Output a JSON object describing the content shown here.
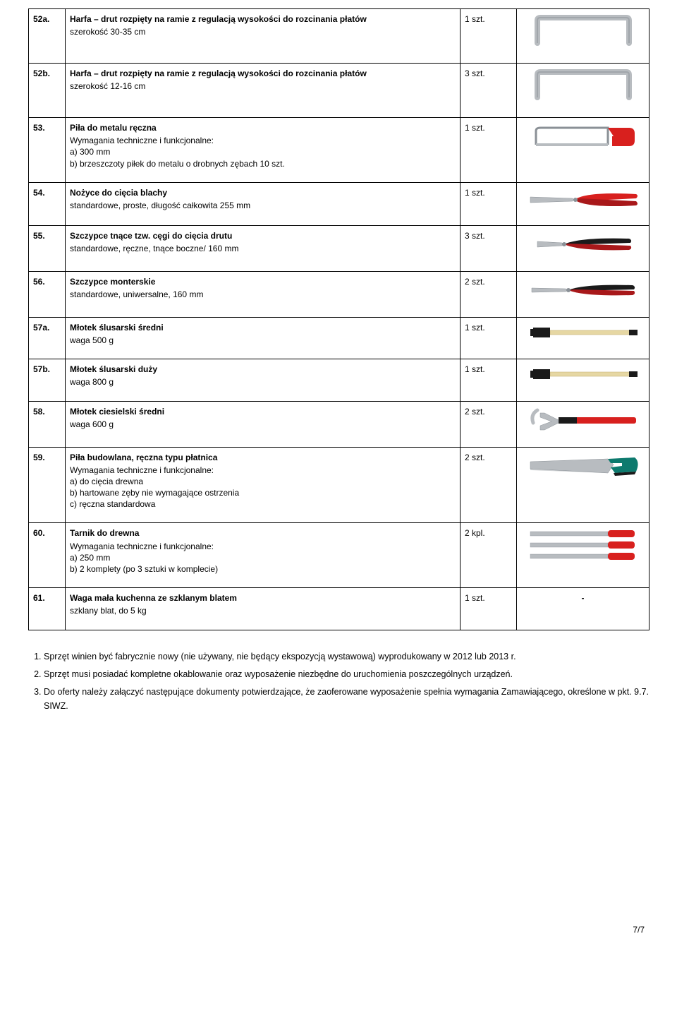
{
  "rows": [
    {
      "num": "52a.",
      "title": "Harfa – drut rozpięty na ramie z regulacją wysokości do rozcinania płatów",
      "lines": [
        "szerokość 30-35 cm"
      ],
      "qty": "1 szt.",
      "icon": "harp-frame-large"
    },
    {
      "num": "52b.",
      "title": "Harfa – drut rozpięty na ramie z regulacją wysokości do rozcinania płatów",
      "lines": [
        "szerokość 12-16 cm"
      ],
      "qty": "3 szt.",
      "icon": "harp-frame-small"
    },
    {
      "num": "53.",
      "title": "Piła do metalu ręczna",
      "lines": [
        "Wymagania techniczne i funkcjonalne:",
        "a)  300 mm",
        "b)  brzeszczoty piłek do metalu o drobnych zębach 10 szt."
      ],
      "qty": "1 szt.",
      "icon": "hacksaw"
    },
    {
      "num": "54.",
      "title": "Nożyce do cięcia blachy",
      "lines": [
        "standardowe, proste, długość całkowita 255 mm"
      ],
      "qty": "1 szt.",
      "icon": "tin-snips"
    },
    {
      "num": "55.",
      "title": "Szczypce tnące tzw. cęgi do cięcia drutu",
      "lines": [
        "standardowe, ręczne, tnące boczne/ 160 mm"
      ],
      "qty": "3 szt.",
      "icon": "side-cutters"
    },
    {
      "num": "56.",
      "title": "Szczypce monterskie",
      "lines": [
        "standardowe, uniwersalne, 160 mm"
      ],
      "qty": "2 szt.",
      "icon": "combination-pliers"
    },
    {
      "num": "57a.",
      "title": "Młotek ślusarski średni",
      "lines": [
        "waga 500 g"
      ],
      "qty": "1 szt.",
      "icon": "hammer-medium"
    },
    {
      "num": "57b.",
      "title": "Młotek ślusarski duży",
      "lines": [
        "waga 800 g"
      ],
      "qty": "1 szt.",
      "icon": "hammer-large"
    },
    {
      "num": "58.",
      "title": "Młotek ciesielski średni",
      "lines": [
        "waga 600 g"
      ],
      "qty": "2 szt.",
      "icon": "claw-hammer"
    },
    {
      "num": "59.",
      "title": "Piła budowlana, ręczna typu płatnica",
      "lines": [
        "Wymagania techniczne i funkcjonalne:",
        "a)  do cięcia drewna",
        "b)  hartowane zęby nie wymagające ostrzenia",
        "c)  ręczna standardowa"
      ],
      "qty": "2 szt.",
      "icon": "handsaw"
    },
    {
      "num": "60.",
      "title": "Tarnik do drewna",
      "lines": [
        "Wymagania techniczne i funkcjonalne:",
        "a)  250 mm",
        "b)  2 komplety (po 3 sztuki w komplecie)"
      ],
      "qty": "2 kpl.",
      "icon": "rasp-set"
    },
    {
      "num": "61.",
      "title": "Waga mała kuchenna ze szklanym blatem",
      "lines": [
        "szklany blat, do 5 kg"
      ],
      "qty": "1 szt.",
      "icon": "dash"
    }
  ],
  "notes": [
    "Sprzęt winien być fabrycznie nowy (nie używany, nie będący ekspozycją wystawową) wyprodukowany w 2012 lub 2013 r.",
    "Sprzęt musi posiadać kompletne okablowanie oraz wyposażenie niezbędne do uruchomienia poszczególnych urządzeń.",
    "Do oferty należy załączyć następujące dokumenty potwierdzające, że zaoferowane wyposażenie spełnia wymagania Zamawiającego, określone w pkt. 9.7. SIWZ."
  ],
  "footer": "7/7",
  "dash": "-",
  "colors": {
    "red": "#d8201e",
    "darkred": "#a8181a",
    "steel": "#b8bcc0",
    "steel_dark": "#8a9096",
    "wood": "#e6d7a3",
    "wood_dark": "#c8b57a",
    "black": "#1a1a1a",
    "teal": "#0d7a6e"
  }
}
